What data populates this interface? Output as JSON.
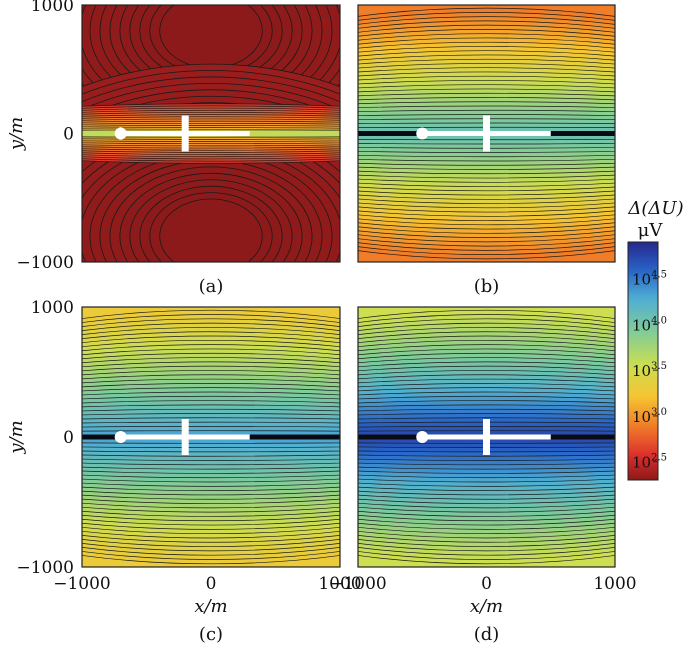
{
  "chart_data": [
    {
      "type": "heatmap",
      "panel_label": "(a)",
      "xlim": [
        -1000,
        1000
      ],
      "ylim": [
        -1000,
        1000
      ],
      "yticks": [
        "1000",
        "0",
        "−1000"
      ],
      "xticks": [],
      "ylabel": "y/m",
      "xlabel": "",
      "field": {
        "kind": "dipole_lobes",
        "value_range_log10": [
          2.3,
          3.0
        ]
      },
      "instrument": {
        "source_x": -700,
        "bar_x0": -700,
        "bar_x1": 300,
        "receiver_x": -200
      }
    },
    {
      "type": "heatmap",
      "panel_label": "(b)",
      "xlim": [
        -1000,
        1000
      ],
      "ylim": [
        -1000,
        1000
      ],
      "yticks": [],
      "xticks": [],
      "ylabel": "",
      "xlabel": "",
      "field": {
        "kind": "band",
        "value_range_log10": [
          2.9,
          4.1
        ]
      },
      "instrument": {
        "source_x": -500,
        "bar_x0": -500,
        "bar_x1": 500,
        "receiver_x": 0
      }
    },
    {
      "type": "heatmap",
      "panel_label": "(c)",
      "xlim": [
        -1000,
        1000
      ],
      "ylim": [
        -1000,
        1000
      ],
      "yticks": [
        "1000",
        "0",
        "−1000"
      ],
      "xticks": [
        "−1000",
        "0",
        "1000"
      ],
      "ylabel": "y/m",
      "xlabel": "x/m",
      "field": {
        "kind": "band",
        "value_range_log10": [
          3.3,
          4.35
        ]
      },
      "instrument": {
        "source_x": -700,
        "bar_x0": -700,
        "bar_x1": 300,
        "receiver_x": -200
      }
    },
    {
      "type": "heatmap",
      "panel_label": "(d)",
      "xlim": [
        -1000,
        1000
      ],
      "ylim": [
        -1000,
        1000
      ],
      "yticks": [],
      "xticks": [
        "−1000",
        "0",
        "1000"
      ],
      "ylabel": "",
      "xlabel": "x/m",
      "field": {
        "kind": "band",
        "value_range_log10": [
          3.55,
          4.75
        ]
      },
      "instrument": {
        "source_x": -500,
        "bar_x0": -500,
        "bar_x1": 500,
        "receiver_x": 0
      }
    }
  ],
  "colorbar": {
    "title": "Δ(ΔU)",
    "unit": "μV",
    "range_log10": [
      2.3,
      4.9
    ],
    "ticks": [
      {
        "value": 2.5,
        "base": "10",
        "exp": "2.5"
      },
      {
        "value": 3.0,
        "base": "10",
        "exp": "3.0"
      },
      {
        "value": 3.5,
        "base": "10",
        "exp": "3.5"
      },
      {
        "value": 4.0,
        "base": "10",
        "exp": "4.0"
      },
      {
        "value": 4.5,
        "base": "10",
        "exp": "4.5"
      }
    ]
  }
}
